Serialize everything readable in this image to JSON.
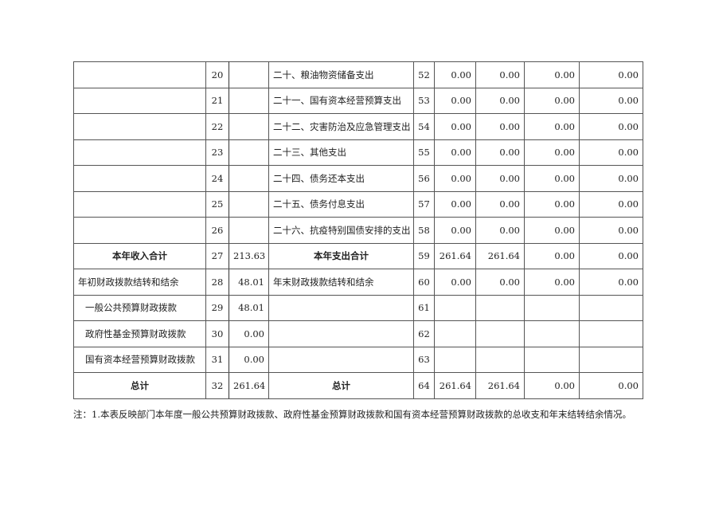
{
  "rows": [
    {
      "left": "",
      "no": "20",
      "val": "",
      "item": "二十、粮油物资储备支出",
      "no2": "52",
      "c1": "0.00",
      "c2": "0.00",
      "c3": "0.00",
      "c4": "0.00"
    },
    {
      "left": "",
      "no": "21",
      "val": "",
      "item": "二十一、国有资本经营预算支出",
      "no2": "53",
      "c1": "0.00",
      "c2": "0.00",
      "c3": "0.00",
      "c4": "0.00"
    },
    {
      "left": "",
      "no": "22",
      "val": "",
      "item": "二十二、灾害防治及应急管理支出",
      "no2": "54",
      "c1": "0.00",
      "c2": "0.00",
      "c3": "0.00",
      "c4": "0.00"
    },
    {
      "left": "",
      "no": "23",
      "val": "",
      "item": "二十三、其他支出",
      "no2": "55",
      "c1": "0.00",
      "c2": "0.00",
      "c3": "0.00",
      "c4": "0.00"
    },
    {
      "left": "",
      "no": "24",
      "val": "",
      "item": "二十四、债务还本支出",
      "no2": "56",
      "c1": "0.00",
      "c2": "0.00",
      "c3": "0.00",
      "c4": "0.00"
    },
    {
      "left": "",
      "no": "25",
      "val": "",
      "item": "二十五、债务付息支出",
      "no2": "57",
      "c1": "0.00",
      "c2": "0.00",
      "c3": "0.00",
      "c4": "0.00"
    },
    {
      "left": "",
      "no": "26",
      "val": "",
      "item": "二十六、抗疫特别国债安排的支出",
      "no2": "58",
      "c1": "0.00",
      "c2": "0.00",
      "c3": "0.00",
      "c4": "0.00"
    },
    {
      "left": "本年收入合计",
      "no": "27",
      "val": "213.63",
      "item": "本年支出合计",
      "no2": "59",
      "c1": "261.64",
      "c2": "261.64",
      "c3": "0.00",
      "c4": "0.00",
      "bold": true
    },
    {
      "left": "年初财政拨款结转和结余",
      "no": "28",
      "val": "48.01",
      "item": "年末财政拨款结转和结余",
      "no2": "60",
      "c1": "0.00",
      "c2": "0.00",
      "c3": "0.00",
      "c4": "0.00"
    },
    {
      "left": "一般公共预算财政拨款",
      "no": "29",
      "val": "48.01",
      "item": "",
      "no2": "61",
      "c1": "",
      "c2": "",
      "c3": "",
      "c4": "",
      "indent": true
    },
    {
      "left": "政府性基金预算财政拨款",
      "no": "30",
      "val": "0.00",
      "item": "",
      "no2": "62",
      "c1": "",
      "c2": "",
      "c3": "",
      "c4": "",
      "indent": true
    },
    {
      "left": "国有资本经营预算财政拨款",
      "no": "31",
      "val": "0.00",
      "item": "",
      "no2": "63",
      "c1": "",
      "c2": "",
      "c3": "",
      "c4": "",
      "indent": true
    },
    {
      "left": "总计",
      "no": "32",
      "val": "261.64",
      "item": "总计",
      "no2": "64",
      "c1": "261.64",
      "c2": "261.64",
      "c3": "0.00",
      "c4": "0.00",
      "bold": true
    }
  ],
  "note": "注：1.本表反映部门本年度一般公共预算财政拨款、政府性基金预算财政拨款和国有资本经营预算财政拨款的总收支和年末结转结余情况。"
}
